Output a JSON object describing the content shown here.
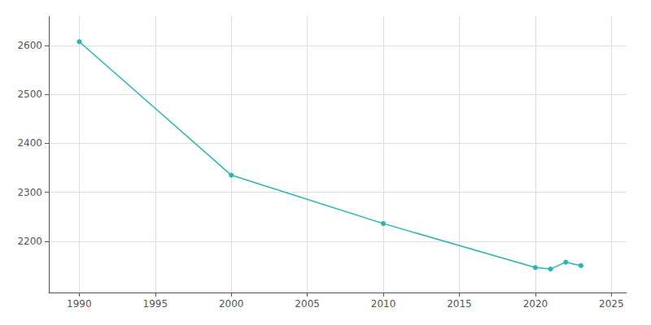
{
  "chart_data": {
    "type": "line",
    "x": [
      1990,
      2000,
      2010,
      2020,
      2021,
      2022,
      2023
    ],
    "values": [
      2608,
      2335,
      2236,
      2146,
      2143,
      2157,
      2150
    ],
    "color": "#29b5b5",
    "marker": "circle",
    "xlim": [
      1988,
      2026
    ],
    "xticks": [
      1990,
      1995,
      2000,
      2005,
      2010,
      2015,
      2020,
      2025
    ],
    "ylim": [
      2095,
      2660
    ],
    "yticks": [
      2200,
      2300,
      2400,
      2500,
      2600
    ],
    "grid": true
  }
}
